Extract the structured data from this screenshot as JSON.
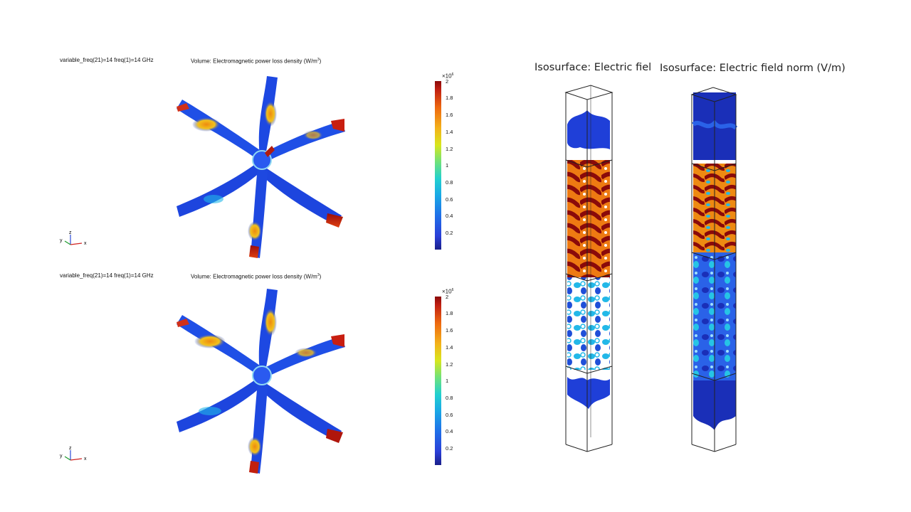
{
  "top_panel": {
    "header_left": "variable_freq(21)=14 freq(1)=14 GHz",
    "title": "Volume: Electromagnetic power loss density (W/m",
    "title_sup": "3",
    "title_end": ")",
    "colorbar_multiplier": "×10",
    "colorbar_multiplier_exp": "6",
    "colorbar_ticks": [
      "2",
      "1.8",
      "1.6",
      "1.4",
      "1.2",
      "1",
      "0.8",
      "0.6",
      "0.4",
      "0.2"
    ]
  },
  "bottom_panel": {
    "header_left": "variable_freq(21)=14 freq(1)=14 GHz",
    "title": "Volume: Electromagnetic power loss density (W/m",
    "title_sup": "3",
    "title_end": ")",
    "colorbar_multiplier": "×10",
    "colorbar_multiplier_exp": "6",
    "colorbar_ticks": [
      "2",
      "1.8",
      "1.6",
      "1.4",
      "1.2",
      "1",
      "0.8",
      "0.6",
      "0.4",
      "0.2"
    ]
  },
  "axes_labels": {
    "z": "z",
    "y": "y",
    "x": "x"
  },
  "iso_left_title": "Isosurface: Electric field",
  "iso_right_title": "Isosurface: Electric field norm (V/m)",
  "colors": {
    "dark_red": "#8a0a0a",
    "orange": "#ee7a12",
    "blue": "#1a3fdc",
    "cyan": "#22b8e8"
  }
}
